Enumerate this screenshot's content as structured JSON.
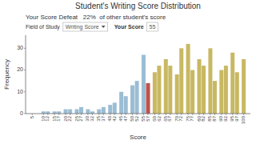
{
  "chart_data": {
    "type": "bar",
    "title": "Student's Writing Score Distribution",
    "xlabel": "Score",
    "ylabel": "Frequency",
    "annotations": [
      "Your Score Defeat   22%  of other student's score",
      "Field of Study",
      "Writing Score",
      "Your Score",
      "55"
    ],
    "x": [
      5,
      10,
      12,
      15,
      17,
      20,
      22,
      25,
      27,
      30,
      32,
      35,
      37,
      40,
      42,
      45,
      47,
      50,
      52,
      55,
      57,
      60,
      62,
      65,
      67,
      70,
      72,
      75,
      77,
      80,
      82,
      85,
      87,
      90,
      92,
      95,
      97,
      100
    ],
    "values": [
      0,
      1,
      1,
      1,
      1,
      2,
      2,
      2,
      3,
      2,
      1,
      2,
      3,
      4,
      5,
      10,
      8,
      13,
      15,
      27,
      14,
      19,
      22,
      25,
      22,
      18,
      30,
      32,
      20,
      25,
      22,
      30,
      15,
      20,
      22,
      28,
      19,
      25
    ],
    "colors": [
      "#9bbdd4",
      "#9bbdd4",
      "#9bbdd4",
      "#9bbdd4",
      "#9bbdd4",
      "#9bbdd4",
      "#9bbdd4",
      "#9bbdd4",
      "#9bbdd4",
      "#9bbdd4",
      "#9bbdd4",
      "#9bbdd4",
      "#9bbdd4",
      "#9bbdd4",
      "#9bbdd4",
      "#9bbdd4",
      "#9bbdd4",
      "#9bbdd4",
      "#9bbdd4",
      "#9bbdd4",
      "#c0504d",
      "#c8b862",
      "#c8b862",
      "#c8b862",
      "#c8b862",
      "#c8b862",
      "#c8b862",
      "#c8b862",
      "#c8b862",
      "#c8b862",
      "#c8b862",
      "#c8b862",
      "#c8b862",
      "#c8b862",
      "#c8b862",
      "#c8b862",
      "#c8b862",
      "#c8b862"
    ],
    "xlim": [
      2,
      103
    ],
    "xticks": [
      5,
      10,
      12,
      15,
      17,
      20,
      22,
      25,
      27,
      30,
      32,
      35,
      37,
      40,
      42,
      45,
      47,
      50,
      52,
      55,
      57,
      60,
      62,
      65,
      67,
      70,
      72,
      75,
      77,
      80,
      82,
      85,
      87,
      90,
      92,
      95,
      97,
      100
    ],
    "ylim": [
      0,
      36
    ],
    "yticks": [
      0,
      10,
      20,
      30
    ],
    "grid": false
  }
}
